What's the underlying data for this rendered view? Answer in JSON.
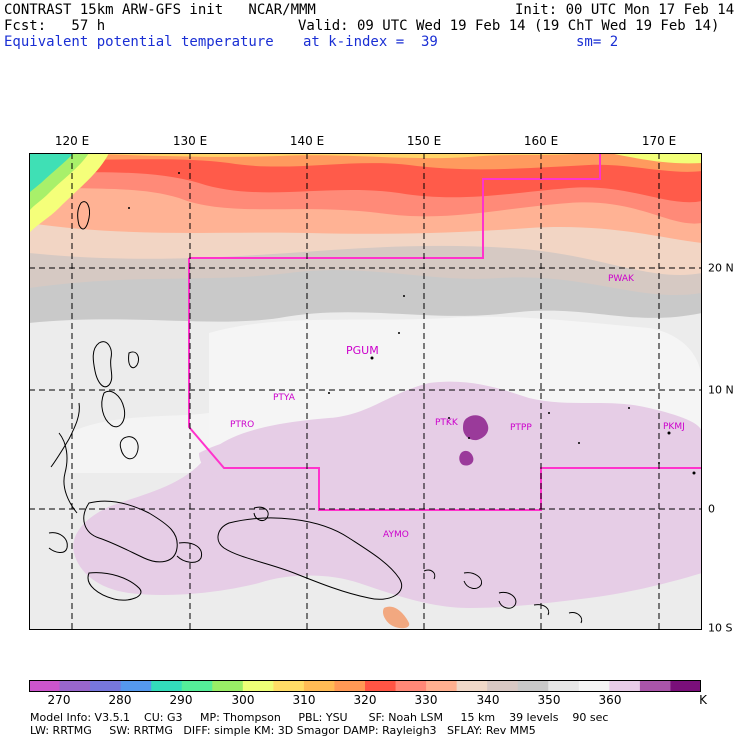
{
  "header": {
    "line1_left": "CONTRAST 15km ARW-GFS init   NCAR/MMM",
    "line1_right": "Init: 00 UTC Mon 17 Feb 14",
    "line2_left": "Fcst:   57 h",
    "line2_right": "Valid: 09 UTC Wed 19 Feb 14 (19 ChT Wed 19 Feb 14)",
    "line3_field": "Equivalent potential temperature",
    "line3_level": "at k-index =  39",
    "line3_smooth": "sm= 2"
  },
  "map": {
    "lon_labels": [
      "120 E",
      "130 E",
      "140 E",
      "150 E",
      "160 E",
      "170 E"
    ],
    "lat_labels": [
      "20 N",
      "10 N",
      "0",
      "10 S"
    ],
    "stations": [
      "PWAK",
      "PGUM",
      "PTYA",
      "PTRO",
      "PTKK",
      "PTPP",
      "PKMJ",
      "AYMO"
    ],
    "highlight_color": "#ff33cc",
    "station_color": "#cc00cc"
  },
  "colorbar": {
    "ticks": [
      "270",
      "280",
      "290",
      "300",
      "310",
      "320",
      "330",
      "340",
      "350",
      "360"
    ],
    "unit": "K",
    "colors": [
      "#cc55cc",
      "#9966cc",
      "#7777dd",
      "#5599ee",
      "#33ddbb",
      "#55ee99",
      "#99ee66",
      "#eeff77",
      "#ffdd66",
      "#ffbb55",
      "#ff9955",
      "#ff5544",
      "#ff8877",
      "#ffb090",
      "#f0d8c8",
      "#d8c8c4",
      "#c8c8c8",
      "#e6e6e6",
      "#f4f4f4",
      "#e8cce8",
      "#aa55aa",
      "#7a0f7a"
    ]
  },
  "info": {
    "line1": "Model Info: V3.5.1    CU: G3     MP: Thompson     PBL: YSU      SF: Noah LSM     15 km    39 levels    90 sec",
    "line2": "LW: RRTMG     SW: RRTMG   DIFF: simple KM: 3D Smagor DAMP: Rayleigh3   SFLAY: Rev MM5"
  }
}
